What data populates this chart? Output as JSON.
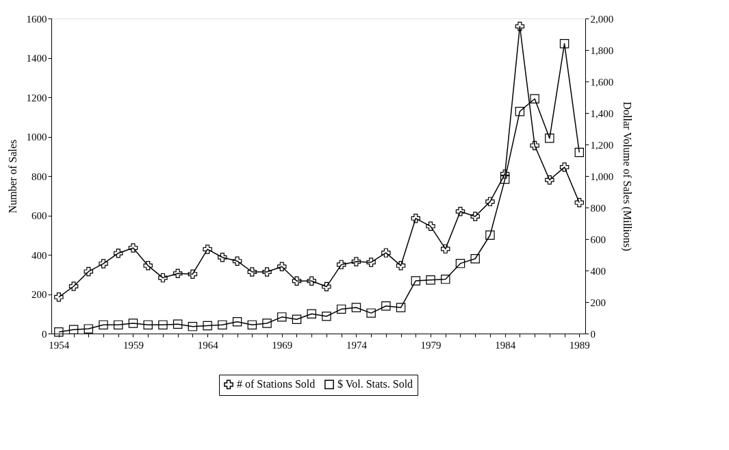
{
  "chart_data": {
    "type": "line",
    "xlabel": null,
    "ylabel": "Number of Sales",
    "y2label": "Dollar Volume of Sales (Millions)",
    "x": [
      1954,
      1955,
      1956,
      1957,
      1958,
      1959,
      1960,
      1961,
      1962,
      1963,
      1964,
      1965,
      1966,
      1967,
      1968,
      1969,
      1970,
      1971,
      1972,
      1973,
      1974,
      1975,
      1976,
      1977,
      1978,
      1979,
      1980,
      1981,
      1982,
      1983,
      1984,
      1985,
      1986,
      1987,
      1988,
      1989
    ],
    "series": [
      {
        "name": "# of Stations Sold",
        "color": "#000000",
        "marker": "cross",
        "values": [
          185,
          240,
          315,
          355,
          408,
          435,
          345,
          283,
          305,
          302,
          428,
          387,
          368,
          313,
          313,
          340,
          267,
          267,
          238,
          350,
          365,
          362,
          410,
          345,
          585,
          545,
          430,
          620,
          595,
          670,
          810,
          1560,
          955,
          780,
          845,
          665
        ]
      },
      {
        "name": "$ Vol. Stats. Sold",
        "color": "#000000",
        "marker": "square",
        "axis": "y2",
        "values": [
          10,
          25,
          30,
          55,
          55,
          65,
          55,
          55,
          60,
          45,
          50,
          55,
          75,
          55,
          65,
          105,
          90,
          125,
          110,
          155,
          165,
          130,
          175,
          165,
          335,
          340,
          345,
          445,
          475,
          625,
          980,
          1410,
          1490,
          1240,
          1840,
          1150
        ]
      }
    ],
    "xlim": [
      1953.5,
      1989.4
    ],
    "xticks": [
      1954,
      {
        "value": 1955,
        "label": null
      },
      {
        "value": 1956,
        "label": null
      },
      {
        "value": 1957,
        "label": null
      },
      {
        "value": 1958,
        "label": null
      },
      1959,
      {
        "value": 1960,
        "label": null
      },
      {
        "value": 1961,
        "label": null
      },
      {
        "value": 1962,
        "label": null
      },
      {
        "value": 1963,
        "label": null
      },
      1964,
      {
        "value": 1965,
        "label": null
      },
      {
        "value": 1966,
        "label": null
      },
      {
        "value": 1967,
        "label": null
      },
      {
        "value": 1968,
        "label": null
      },
      1969,
      {
        "value": 1970,
        "label": null
      },
      {
        "value": 1971,
        "label": null
      },
      {
        "value": 1972,
        "label": null
      },
      {
        "value": 1973,
        "label": null
      },
      1974,
      {
        "value": 1975,
        "label": null
      },
      {
        "value": 1976,
        "label": null
      },
      {
        "value": 1977,
        "label": null
      },
      {
        "value": 1978,
        "label": null
      },
      1979,
      {
        "value": 1980,
        "label": null
      },
      {
        "value": 1981,
        "label": null
      },
      {
        "value": 1982,
        "label": null
      },
      {
        "value": 1983,
        "label": null
      },
      1984,
      {
        "value": 1985,
        "label": null
      },
      {
        "value": 1986,
        "label": null
      },
      {
        "value": 1987,
        "label": null
      },
      {
        "value": 1988,
        "label": null
      },
      1989
    ],
    "ylim": [
      0,
      1600
    ],
    "yticks": [
      0,
      200,
      400,
      600,
      800,
      1000,
      1200,
      1400,
      1600
    ],
    "y2lim": [
      0,
      2000
    ],
    "y2ticks": [
      0,
      200,
      400,
      600,
      800,
      {
        "value": 1000,
        "label": "1,000"
      },
      {
        "value": 1200,
        "label": "1,200"
      },
      {
        "value": 1400,
        "label": "1,400"
      },
      {
        "value": 1600,
        "label": "1,600"
      },
      {
        "value": 1800,
        "label": "1,800"
      },
      {
        "value": 2000,
        "label": "2,000"
      }
    ],
    "grid": false,
    "legend": "bottom",
    "line_style": "solid"
  }
}
